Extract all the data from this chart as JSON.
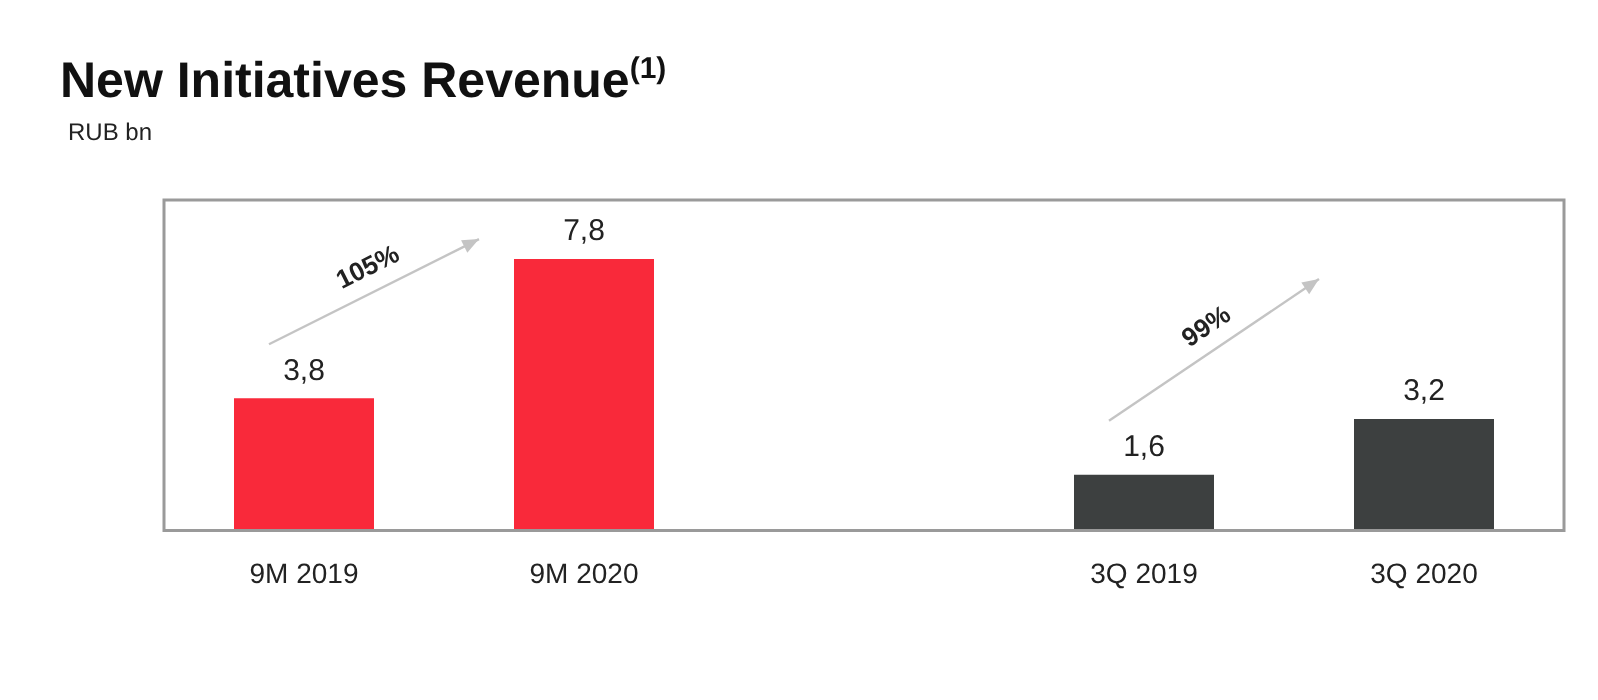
{
  "chart_data": {
    "type": "bar",
    "title": "New Initiatives Revenue$^{(1)}$",
    "ylabel": "RUB bn",
    "categories": [
      "9M 2019",
      "9M 2020",
      null,
      "3Q 2019",
      "3Q 2020"
    ],
    "values": [
      3.8,
      7.8,
      null,
      1.6,
      3.2
    ],
    "colors": [
      "#f9293a",
      "#f9293a",
      null,
      "#3d4040",
      "#3d4040"
    ],
    "value_labels": [
      "3,8",
      "7,8",
      null,
      "1,6",
      "3,2"
    ],
    "annotations": [
      "105%",
      "99%"
    ],
    "ylim": [
      0,
      9.5
    ],
    "tick_labels": "x",
    "grid": false,
    "legend": false
  }
}
